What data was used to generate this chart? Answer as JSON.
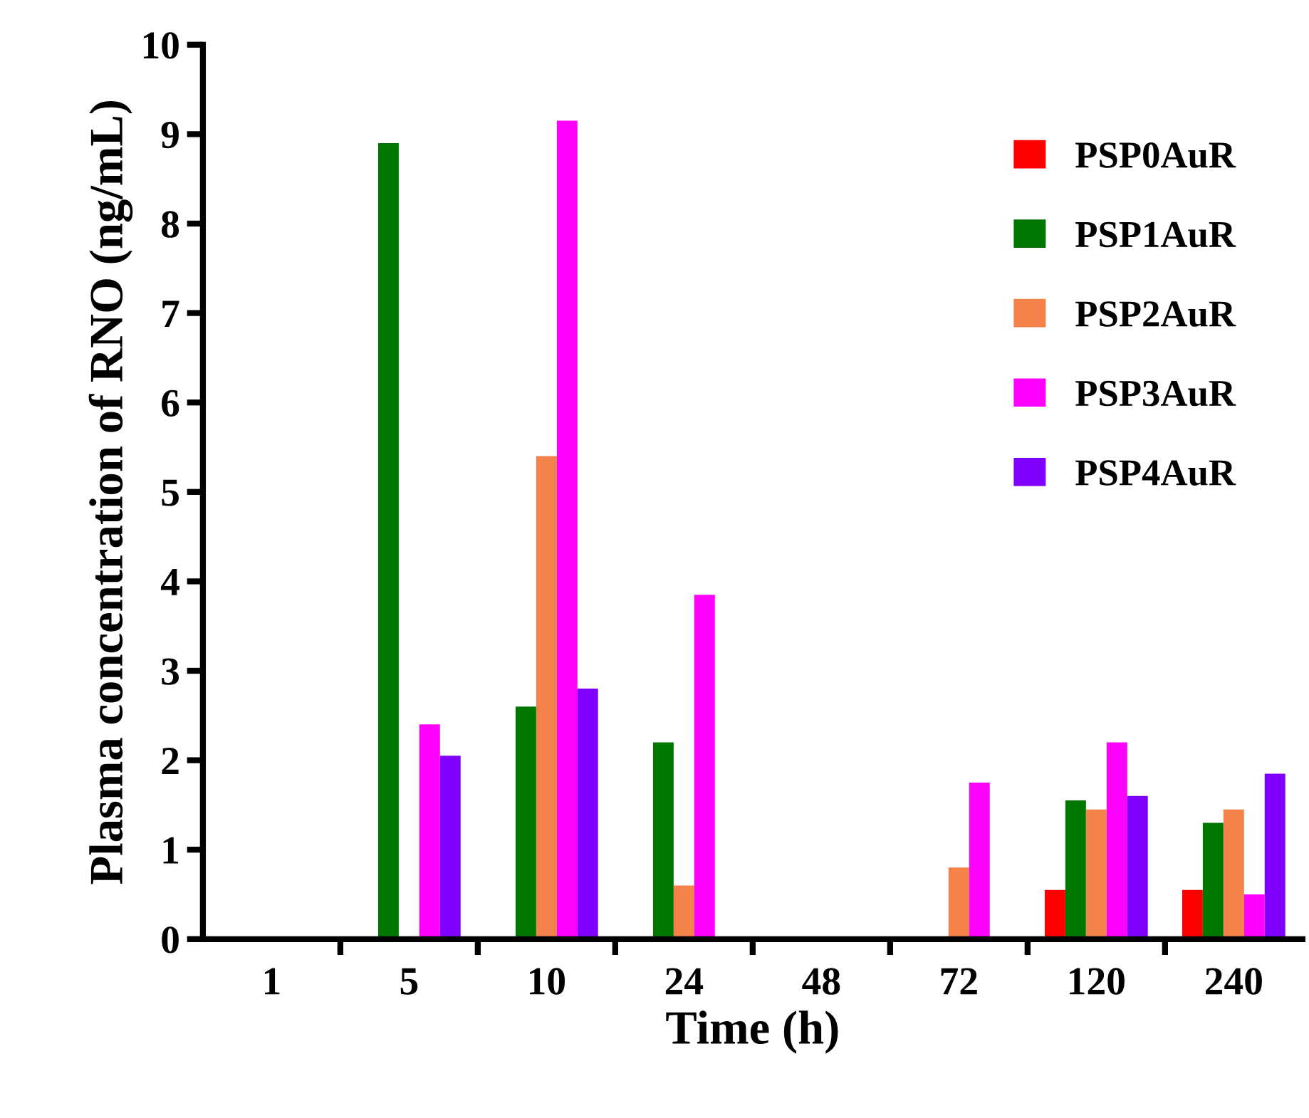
{
  "chart_data": {
    "type": "bar",
    "xlabel": "Time (h)",
    "ylabel": "Plasma concentration of RNO (ng/mL)",
    "categories": [
      "1",
      "5",
      "10",
      "24",
      "48",
      "72",
      "120",
      "240"
    ],
    "series": [
      {
        "name": "PSP0AuR",
        "color": "#ff0000",
        "values": [
          null,
          null,
          null,
          null,
          null,
          null,
          0.55,
          0.55
        ]
      },
      {
        "name": "PSP1AuR",
        "color": "#007700",
        "values": [
          null,
          8.9,
          2.6,
          2.2,
          null,
          null,
          1.55,
          1.3
        ]
      },
      {
        "name": "PSP2AuR",
        "color": "#f4824a",
        "values": [
          null,
          null,
          5.4,
          0.6,
          null,
          0.8,
          1.45,
          1.45
        ]
      },
      {
        "name": "PSP3AuR",
        "color": "#ff00ff",
        "values": [
          null,
          2.4,
          9.15,
          3.85,
          null,
          1.75,
          2.2,
          0.5
        ]
      },
      {
        "name": "PSP4AuR",
        "color": "#8000ff",
        "values": [
          null,
          2.05,
          2.8,
          null,
          null,
          null,
          1.6,
          1.85
        ]
      }
    ],
    "ylim": [
      0,
      10
    ],
    "yticks": [
      0,
      1,
      2,
      3,
      4,
      5,
      6,
      7,
      8,
      9,
      10
    ],
    "grid": false,
    "legend": "top right"
  }
}
